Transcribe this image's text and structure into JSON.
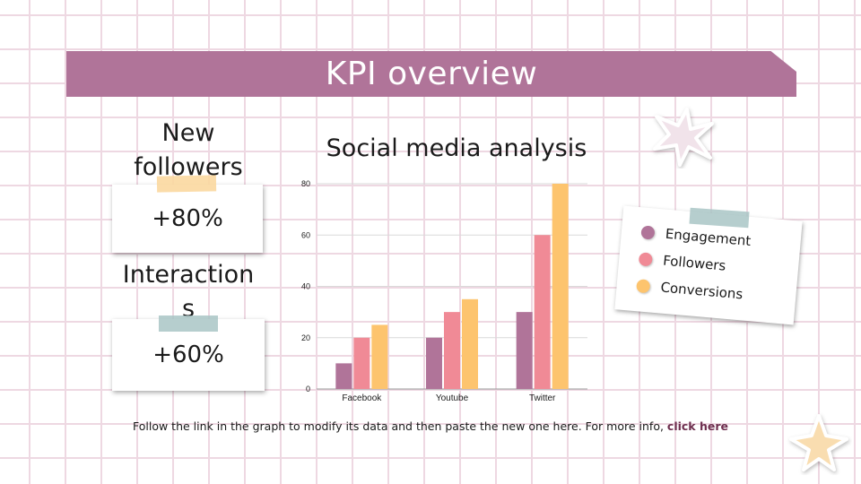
{
  "page": {
    "title": "KPI overview",
    "footer_text": "Follow the link in the graph to modify its data and then paste the new one here. For more info, ",
    "footer_link": "click here"
  },
  "kpis": [
    {
      "label": "New followers",
      "value": "+80%"
    },
    {
      "label": "Interactions",
      "value": "+60%"
    }
  ],
  "colors": {
    "banner": "#b07499",
    "engagement": "#b07499",
    "followers": "#f08a96",
    "conversions": "#fdc46e",
    "tape_orange": "#fbd8a0",
    "tape_teal": "#a9c6c6",
    "grid": "#eed8e2"
  },
  "chart_data": {
    "type": "bar",
    "title": "Social media analysis",
    "categories": [
      "Facebook",
      "Youtube",
      "Twitter"
    ],
    "series": [
      {
        "name": "Engagement",
        "values": [
          10,
          20,
          30
        ]
      },
      {
        "name": "Followers",
        "values": [
          20,
          30,
          60
        ]
      },
      {
        "name": "Conversions",
        "values": [
          25,
          35,
          80
        ]
      }
    ],
    "yticks": [
      0,
      20,
      40,
      60,
      80
    ],
    "ylim": [
      0,
      80
    ],
    "grid": true,
    "legend_position": "right"
  }
}
